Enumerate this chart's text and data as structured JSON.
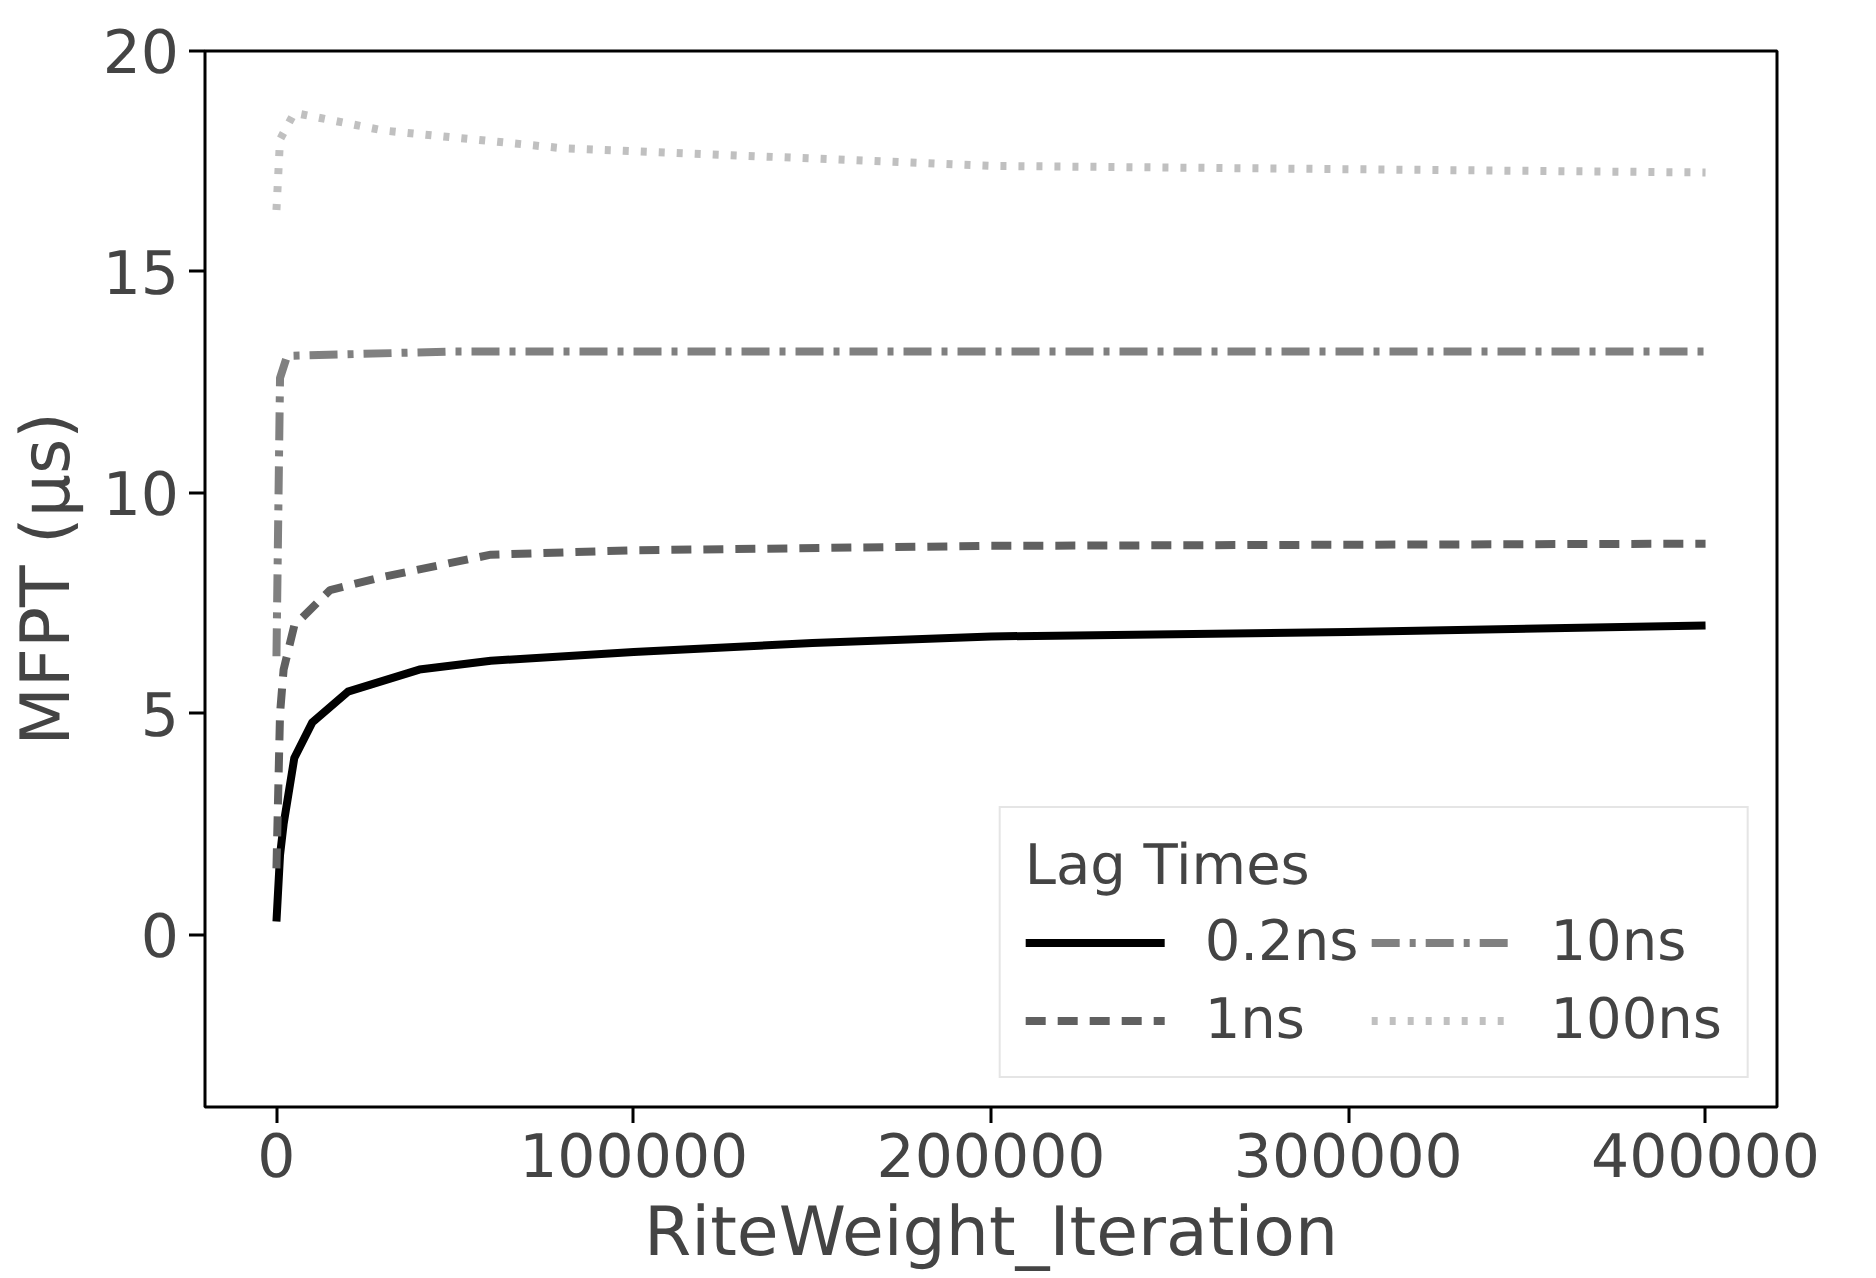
{
  "chart_data": {
    "type": "line",
    "xlabel": "RiteWeight_Iteration",
    "ylabel": "MFPT (µs)",
    "legend_title": "Lag Times",
    "legend": "bottom right",
    "grid": false,
    "xlim": [
      -20000,
      420000
    ],
    "xticks": [
      0,
      100000,
      200000,
      300000,
      400000
    ],
    "ylim": [
      -3.9,
      20
    ],
    "yticks": [
      0,
      5,
      10,
      15,
      20
    ],
    "series": [
      {
        "name": "0.2ns",
        "color": "#000000",
        "line_style": "solid",
        "x": [
          0,
          1000,
          2000,
          5000,
          10000,
          20000,
          40000,
          60000,
          100000,
          150000,
          200000,
          300000,
          400000
        ],
        "values": [
          0.3,
          1.8,
          2.5,
          4.0,
          4.8,
          5.5,
          6.0,
          6.2,
          6.4,
          6.6,
          6.75,
          6.85,
          7.0
        ]
      },
      {
        "name": "1ns",
        "color": "#606060",
        "line_style": "dashed",
        "x": [
          0,
          1000,
          2000,
          5000,
          15000,
          30000,
          60000,
          100000,
          200000,
          400000
        ],
        "values": [
          1.5,
          5.0,
          6.0,
          7.0,
          7.8,
          8.1,
          8.6,
          8.7,
          8.8,
          8.85
        ]
      },
      {
        "name": "10ns",
        "color": "#808080",
        "line_style": "dashdot",
        "x": [
          0,
          1000,
          3000,
          50000,
          400000
        ],
        "values": [
          6.3,
          12.6,
          13.1,
          13.2,
          13.2
        ]
      },
      {
        "name": "100ns",
        "color": "#c0c0c0",
        "line_style": "dotted",
        "x": [
          0,
          1000,
          5000,
          30000,
          80000,
          200000,
          400000
        ],
        "values": [
          16.4,
          18.0,
          18.6,
          18.2,
          17.8,
          17.4,
          17.25
        ]
      }
    ]
  }
}
